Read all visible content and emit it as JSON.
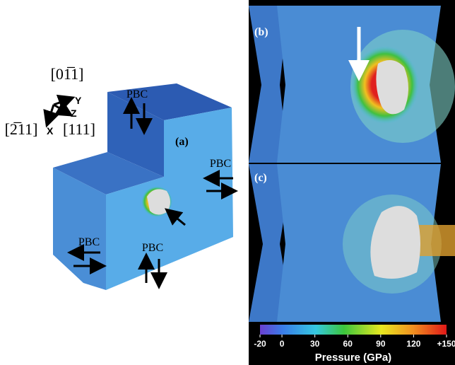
{
  "panel_a": {
    "label": "(a)",
    "orientation": {
      "y_direction": "[01̅1]",
      "y_axis": "Y",
      "z_axis": "Z",
      "x_direction": "[2̅11]",
      "x_axis": "X",
      "z_direction": "[111]"
    },
    "pbc_labels": [
      "PBC",
      "PBC",
      "PBC",
      "PBC"
    ]
  },
  "panel_b": {
    "label": "(b)"
  },
  "panel_c": {
    "label": "(c)"
  },
  "colorbar": {
    "title": "Pressure (GPa)",
    "lim": [
      -20,
      150
    ],
    "ticks": [
      -20,
      0,
      30,
      60,
      90,
      120,
      {
        "value": 150,
        "label": "+150"
      }
    ]
  }
}
